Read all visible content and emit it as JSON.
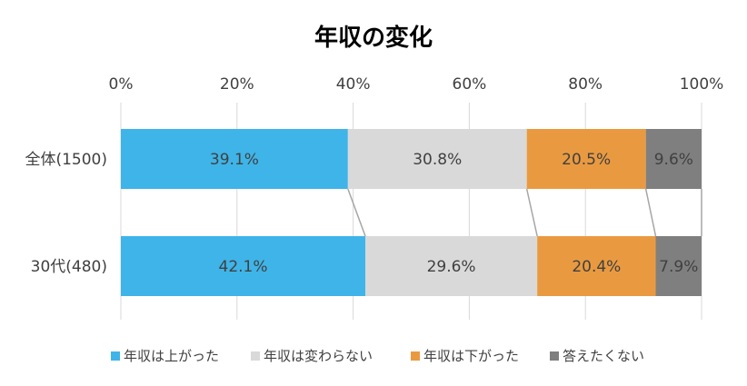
{
  "chart_data": {
    "type": "bar",
    "orientation": "horizontal",
    "stacked": "percent",
    "title": "年収の変化",
    "xlim": [
      0,
      100
    ],
    "x_ticks": [
      "0%",
      "20%",
      "40%",
      "60%",
      "80%",
      "100%"
    ],
    "grid": true,
    "legend_position": "bottom",
    "categories": [
      "全体(1500)",
      "30代(480)"
    ],
    "series": [
      {
        "name": "年収は上がった",
        "color": "#3fb4e8",
        "values": [
          39.1,
          42.1
        ],
        "labels": [
          "39.1%",
          "42.1%"
        ]
      },
      {
        "name": "年収は変わらない",
        "color": "#d9d9d9",
        "values": [
          30.8,
          29.6
        ],
        "labels": [
          "30.8%",
          "29.6%"
        ]
      },
      {
        "name": "年収は下がった",
        "color": "#e99a40",
        "values": [
          20.5,
          20.4
        ],
        "labels": [
          "20.5%",
          "20.4%"
        ]
      },
      {
        "name": "答えたくない",
        "color": "#7f7f7f",
        "values": [
          9.6,
          7.9
        ],
        "labels": [
          "9.6%",
          "7.9%"
        ]
      }
    ]
  }
}
